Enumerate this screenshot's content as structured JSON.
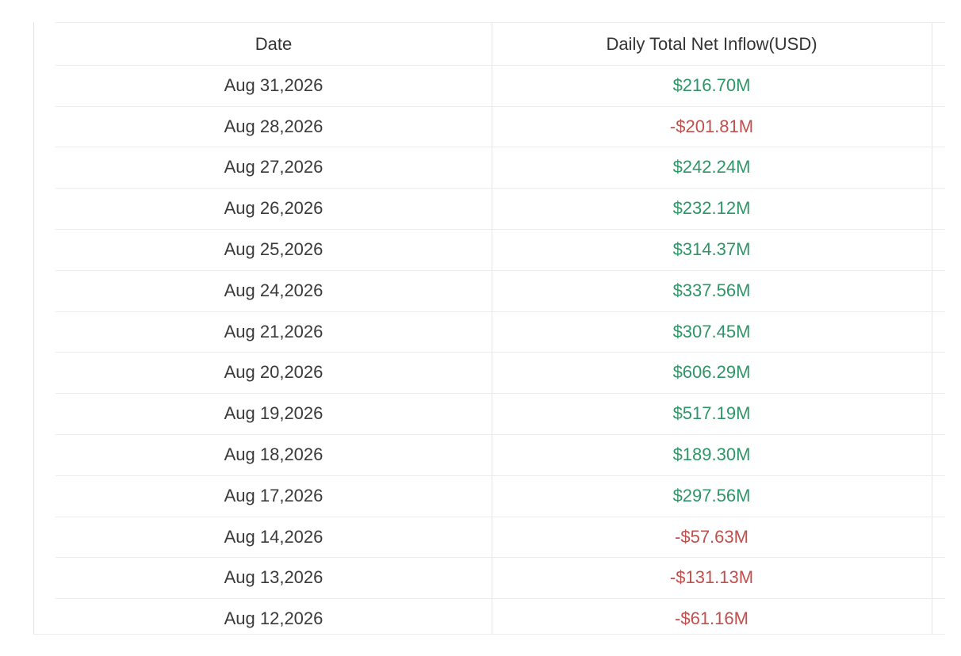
{
  "table": {
    "header": [
      "Date",
      "Daily Total Net Inflow(USD)"
    ],
    "rows": [
      [
        "Aug 31,2026",
        "$216.70M"
      ],
      [
        "Aug 28,2026",
        "-$201.81M"
      ],
      [
        "Aug 27,2026",
        "$242.24M"
      ],
      [
        "Aug 26,2026",
        "$232.12M"
      ],
      [
        "Aug 25,2026",
        "$314.37M"
      ],
      [
        "Aug 24,2026",
        "$337.56M"
      ],
      [
        "Aug 21,2026",
        "$307.45M"
      ],
      [
        "Aug 20,2026",
        "$606.29M"
      ],
      [
        "Aug 19,2026",
        "$517.19M"
      ],
      [
        "Aug 18,2026",
        "$189.30M"
      ],
      [
        "Aug 17,2026",
        "$297.56M"
      ],
      [
        "Aug 14,2026",
        "-$57.63M"
      ],
      [
        "Aug 13,2026",
        "-$131.13M"
      ],
      [
        "Aug 12,2026",
        "-$61.16M"
      ]
    ]
  }
}
